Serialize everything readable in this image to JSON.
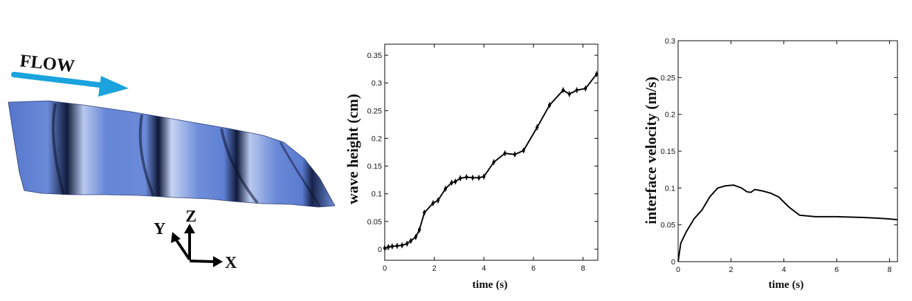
{
  "illustration": {
    "flow_label": "FLOW",
    "axis_labels": {
      "x": "X",
      "y": "Y",
      "z": "Z"
    },
    "colors": {
      "arrow": "#1aa3dd",
      "surface": "#5b7fd4",
      "surface_dark": "#1a2454",
      "surface_light": "#c9d6f2"
    }
  },
  "chart_data": [
    {
      "type": "line",
      "title": "",
      "xlabel": "time (s)",
      "ylabel": "wave height  (cm)",
      "xlim": [
        0,
        8.6
      ],
      "ylim": [
        -0.02,
        0.37
      ],
      "xticks": [
        0,
        2,
        4,
        6,
        8
      ],
      "yticks": [
        0,
        0.05,
        0.1,
        0.15,
        0.2,
        0.25,
        0.3,
        0.35
      ],
      "ytick_labels": [
        "0",
        "0.05",
        "0.1",
        "0.15",
        "0.2",
        "0.25",
        "0.3",
        "0.35"
      ],
      "markers": true,
      "series": [
        {
          "x": [
            0,
            0.15,
            0.3,
            0.5,
            0.7,
            0.9,
            1.05,
            1.25,
            1.4,
            1.6,
            1.95,
            2.15,
            2.45,
            2.7,
            2.85,
            3.05,
            3.3,
            3.55,
            3.8,
            4.0,
            4.4,
            4.85,
            5.25,
            5.6,
            6.15,
            6.65,
            7.2,
            7.45,
            7.75,
            8.1,
            8.55
          ],
          "y": [
            0.002,
            0.004,
            0.005,
            0.006,
            0.007,
            0.01,
            0.015,
            0.022,
            0.035,
            0.066,
            0.083,
            0.088,
            0.109,
            0.12,
            0.122,
            0.128,
            0.13,
            0.129,
            0.129,
            0.131,
            0.157,
            0.173,
            0.171,
            0.178,
            0.22,
            0.26,
            0.287,
            0.28,
            0.287,
            0.29,
            0.316
          ]
        }
      ]
    },
    {
      "type": "line",
      "title": "",
      "xlabel": "time (s)",
      "ylabel": "interface  velocity  (m/s)",
      "xlim": [
        0,
        8.3
      ],
      "ylim": [
        0,
        0.3
      ],
      "xticks": [
        0,
        2,
        4,
        6,
        8
      ],
      "yticks": [
        0,
        0.05,
        0.1,
        0.15,
        0.2,
        0.25,
        0.3
      ],
      "ytick_labels": [
        "0",
        "0.05",
        "0.1",
        "0.15",
        "0.2",
        "0.25",
        "0.3"
      ],
      "markers": false,
      "series": [
        {
          "x": [
            0,
            0.1,
            0.3,
            0.6,
            0.9,
            1.2,
            1.5,
            1.8,
            2.1,
            2.4,
            2.6,
            2.75,
            2.9,
            3.2,
            3.5,
            3.8,
            4.2,
            4.6,
            5.2,
            6.0,
            7.0,
            7.6,
            8.0,
            8.3
          ],
          "y": [
            0,
            0.025,
            0.04,
            0.058,
            0.07,
            0.088,
            0.1,
            0.103,
            0.104,
            0.1,
            0.095,
            0.094,
            0.098,
            0.096,
            0.093,
            0.088,
            0.074,
            0.063,
            0.061,
            0.061,
            0.06,
            0.059,
            0.058,
            0.057
          ]
        }
      ]
    }
  ]
}
